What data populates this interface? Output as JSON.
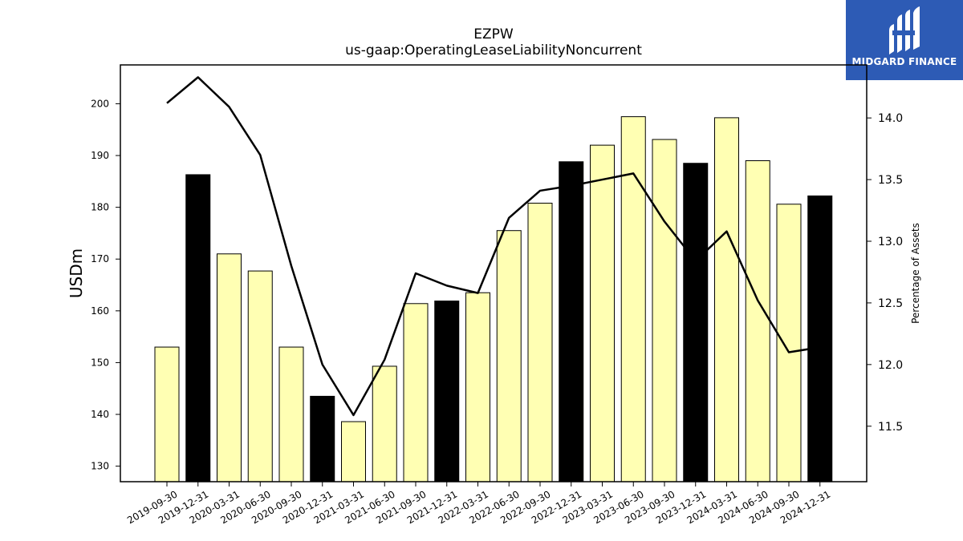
{
  "brand": {
    "name": "MIDGARD FINANCE"
  },
  "chart_data": {
    "type": "bar",
    "title": "EZPW",
    "subtitle": "us-gaap:OperatingLeaseLiabilityNoncurrent",
    "ylabel": "USDm",
    "y2label": "Percentage of Assets",
    "categories": [
      "2019-09-30",
      "2019-12-31",
      "2020-03-31",
      "2020-06-30",
      "2020-09-30",
      "2020-12-31",
      "2021-03-31",
      "2021-06-30",
      "2021-09-30",
      "2021-12-31",
      "2022-03-31",
      "2022-06-30",
      "2022-09-30",
      "2022-12-31",
      "2023-03-31",
      "2023-06-30",
      "2023-09-30",
      "2023-12-31",
      "2024-03-31",
      "2024-06-30",
      "2024-09-30",
      "2024-12-31"
    ],
    "series": [
      {
        "kind": "bar",
        "values": [
          153.0,
          186.3,
          171.0,
          167.7,
          153.0,
          143.5,
          138.6,
          149.3,
          161.4,
          161.9,
          163.5,
          175.5,
          180.8,
          188.8,
          192.0,
          197.5,
          193.1,
          188.5,
          197.3,
          189.0,
          180.6,
          182.2
        ],
        "highlight": [
          false,
          true,
          false,
          false,
          false,
          true,
          false,
          false,
          false,
          true,
          false,
          false,
          false,
          true,
          false,
          false,
          false,
          true,
          false,
          false,
          false,
          true
        ],
        "color": "#ffffb3",
        "highlight_color": "#000000"
      },
      {
        "kind": "line",
        "axis": "right",
        "values": [
          14.12,
          14.33,
          14.09,
          13.7,
          12.8,
          12.0,
          11.59,
          12.04,
          12.74,
          12.64,
          12.58,
          13.19,
          13.41,
          13.45,
          13.5,
          13.55,
          13.16,
          12.84,
          13.08,
          12.52,
          12.1,
          12.14
        ],
        "color": "#000000"
      }
    ],
    "ylim": [
      127,
      207.5
    ],
    "y2lim": [
      11.05,
      14.43
    ],
    "yticks": [
      130,
      140,
      150,
      160,
      170,
      180,
      190,
      200
    ],
    "y2ticks": [
      "11.5",
      "12.0",
      "12.5",
      "13.0",
      "13.5",
      "14.0"
    ],
    "grid": false,
    "legend": "none"
  }
}
